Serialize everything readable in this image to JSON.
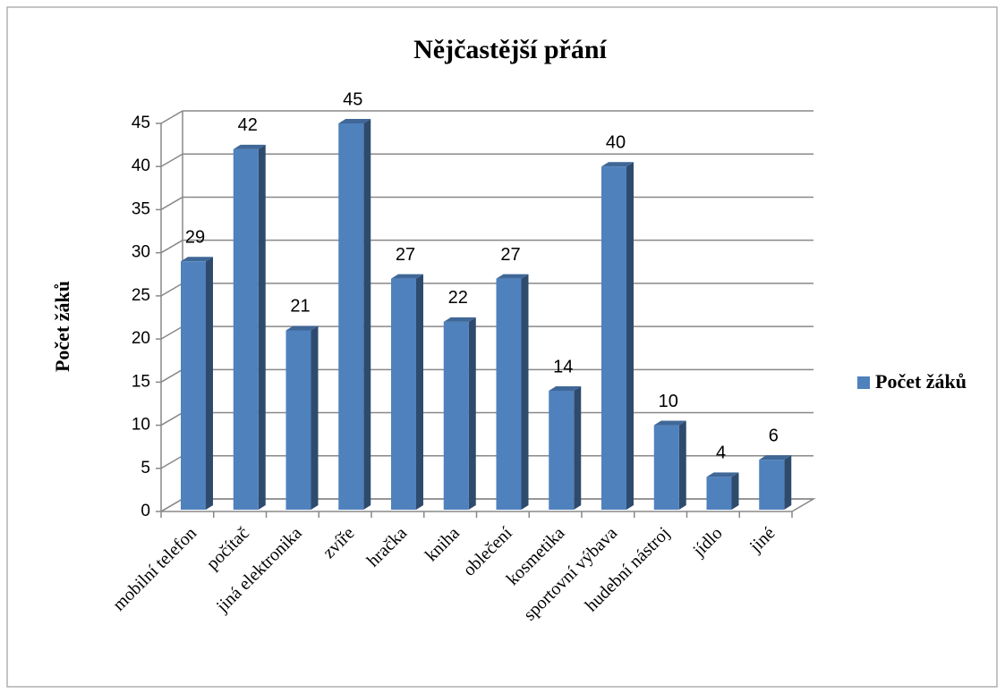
{
  "chart_data": {
    "type": "bar",
    "title": "Nějčastější přání",
    "y_label": "Počet žáků",
    "categories": [
      "mobilní telefon",
      "počítač",
      "jiná elektronika",
      "zvíře",
      "hračka",
      "kniha",
      "oblečení",
      "kosmetika",
      "sportovní výbava",
      "hudební nástroj",
      "jídlo",
      "jiné"
    ],
    "series": [
      {
        "name": "Počet žáků",
        "color": "#4f81bd",
        "values": [
          29,
          42,
          21,
          45,
          27,
          22,
          27,
          14,
          40,
          10,
          4,
          6
        ]
      }
    ],
    "ylim": [
      0,
      45
    ],
    "yticks": [
      0,
      5,
      10,
      15,
      20,
      25,
      30,
      35,
      40,
      45
    ],
    "grid": true,
    "legend": "right",
    "three_d": true
  }
}
